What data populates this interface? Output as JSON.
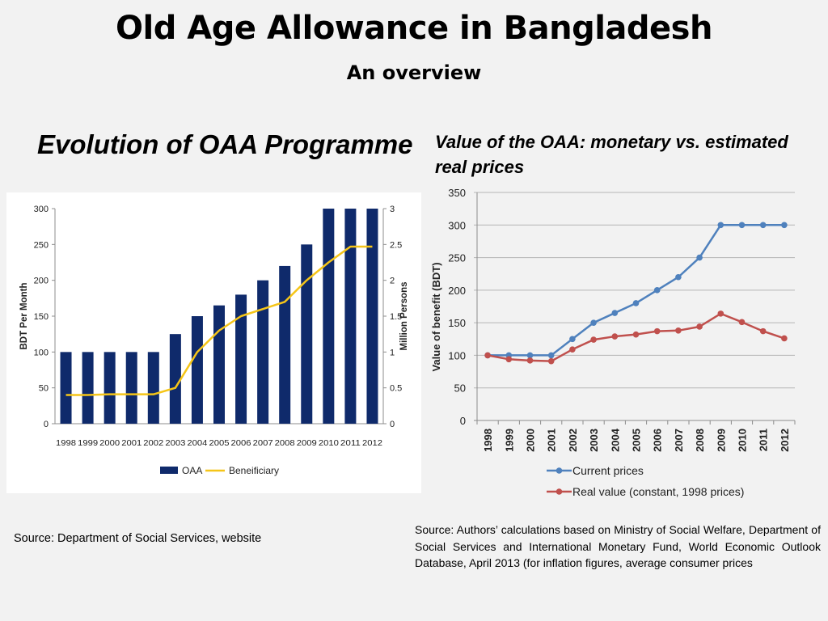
{
  "slide": {
    "title": "Old Age Allowance in Bangladesh",
    "subtitle": "An overview",
    "left_heading": "Evolution of OAA Programme",
    "right_heading": "Value of the OAA: monetary vs. estimated real prices",
    "left_source": "Source: Department of Social Services, website",
    "right_source": "Source: Authors’ calculations based on Ministry of Social Welfare, Department of Social Services and International Monetary Fund, World Economic Outlook Database, April 2013 (for inflation figures, average consumer prices"
  },
  "chart_data": [
    {
      "type": "bar",
      "categories": [
        "1998",
        "1999",
        "2000",
        "2001",
        "2002",
        "2003",
        "2004",
        "2005",
        "2006",
        "2007",
        "2008",
        "2009",
        "2010",
        "2011",
        "2012"
      ],
      "series": [
        {
          "name": "OAA",
          "type": "bar",
          "axis": "left",
          "color": "#0f2a6b",
          "values": [
            100,
            100,
            100,
            100,
            100,
            125,
            150,
            165,
            180,
            200,
            220,
            250,
            300,
            300,
            300
          ]
        },
        {
          "name": "Beneificiary",
          "type": "line",
          "axis": "right",
          "color": "#f5c518",
          "values": [
            0.4,
            0.4,
            0.41,
            0.41,
            0.41,
            0.5,
            1.0,
            1.3,
            1.5,
            1.6,
            1.7,
            2.0,
            2.25,
            2.47,
            2.47
          ]
        }
      ],
      "ylabel": "BDT Per Month",
      "y2label": "Million Persons",
      "ylim": [
        0,
        300
      ],
      "y2lim": [
        0,
        3
      ],
      "yticks": [
        "0",
        "50",
        "100",
        "150",
        "200",
        "250",
        "300"
      ],
      "y2ticks": [
        "0",
        "0.5",
        "1",
        "1.5",
        "2",
        "2.5",
        "3"
      ],
      "legend_position": "bottom",
      "grid": false
    },
    {
      "type": "line",
      "x": [
        "1998",
        "1999",
        "2000",
        "2001",
        "2002",
        "2003",
        "2004",
        "2005",
        "2006",
        "2007",
        "2008",
        "2009",
        "2010",
        "2011",
        "2012"
      ],
      "series": [
        {
          "name": "Current prices",
          "color": "#4f81bd",
          "values": [
            100,
            100,
            100,
            100,
            125,
            150,
            165,
            180,
            200,
            220,
            250,
            300,
            300,
            300,
            300
          ]
        },
        {
          "name": "Real value (constant, 1998 prices)",
          "color": "#c0504d",
          "values": [
            100,
            94,
            92,
            91,
            109,
            124,
            129,
            132,
            137,
            138,
            144,
            164,
            151,
            137,
            126
          ]
        }
      ],
      "ylabel": "Value of benefit (BDT)",
      "ylim": [
        0,
        350
      ],
      "yticks": [
        "0",
        "50",
        "100",
        "150",
        "200",
        "250",
        "300",
        "350"
      ],
      "legend_position": "bottom",
      "grid": true
    }
  ]
}
